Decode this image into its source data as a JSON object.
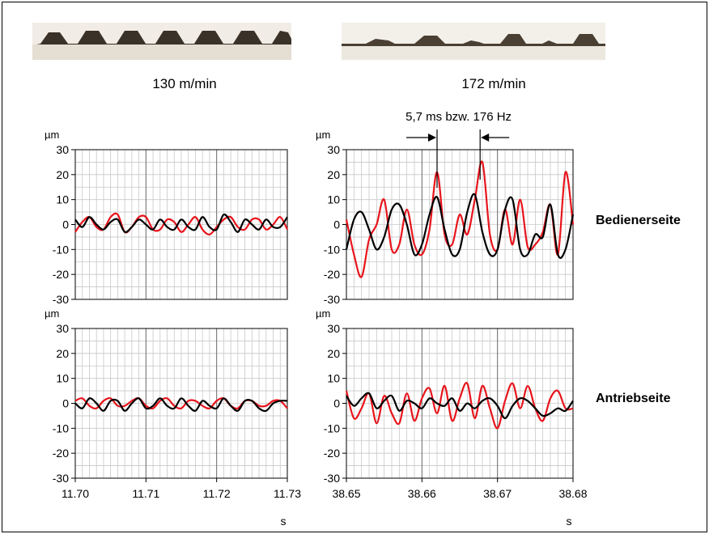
{
  "photos": {
    "left": "flute profile photo 130 m/min (regular, even flutes)",
    "right": "flute profile photo 172 m/min (irregular flutes)"
  },
  "speeds": {
    "left": "130 m/min",
    "right": "172 m/min"
  },
  "annotation": {
    "text": "5,7 ms bzw. 176 Hz"
  },
  "side_labels": {
    "top": "Bedienerseite",
    "bottom": "Antriebseite"
  },
  "colors": {
    "series_red": "#e8141b",
    "series_black": "#000000",
    "grid_minor": "#c8c8c8",
    "grid_major": "#6e6e6e"
  },
  "chart_data": [
    {
      "type": "line",
      "id": "p130_bed",
      "xlabel": "",
      "ylabel": "µm",
      "xlim": [
        11.7,
        11.73
      ],
      "ylim": [
        -30,
        30
      ],
      "yticks": [
        30,
        20,
        10,
        0,
        -10,
        -20,
        -30
      ],
      "series": [
        {
          "color": "red",
          "x": [
            11.7,
            11.701,
            11.702,
            11.703,
            11.704,
            11.705,
            11.706,
            11.707,
            11.708,
            11.709,
            11.71,
            11.711,
            11.712,
            11.713,
            11.714,
            11.715,
            11.716,
            11.717,
            11.718,
            11.719,
            11.72,
            11.721,
            11.722,
            11.723,
            11.724,
            11.725,
            11.726,
            11.727,
            11.728,
            11.729,
            11.73
          ],
          "y": [
            -3,
            1,
            3,
            -1,
            -2,
            3,
            4,
            -3,
            -1,
            3,
            3,
            -2,
            -2,
            2,
            1,
            -3,
            0,
            3,
            -2,
            -4,
            -1,
            2,
            3,
            -1,
            -2,
            2,
            2,
            -2,
            0,
            3,
            -2
          ]
        },
        {
          "color": "black",
          "x": [
            11.7,
            11.701,
            11.702,
            11.703,
            11.704,
            11.705,
            11.706,
            11.707,
            11.708,
            11.709,
            11.71,
            11.711,
            11.712,
            11.713,
            11.714,
            11.715,
            11.716,
            11.717,
            11.718,
            11.719,
            11.72,
            11.721,
            11.722,
            11.723,
            11.724,
            11.725,
            11.726,
            11.727,
            11.728,
            11.729,
            11.73
          ],
          "y": [
            2,
            -1,
            3,
            0,
            -2,
            1,
            2,
            -3,
            -1,
            2,
            0,
            -2,
            2,
            -1,
            -2,
            2,
            -1,
            -2,
            3,
            -1,
            -2,
            4,
            1,
            -3,
            2,
            0,
            -2,
            2,
            -1,
            -1,
            3
          ]
        }
      ]
    },
    {
      "type": "line",
      "id": "p172_bed",
      "xlabel": "",
      "ylabel": "µm",
      "xlim": [
        38.65,
        38.68
      ],
      "ylim": [
        -30,
        30
      ],
      "yticks": [
        30,
        20,
        10,
        0,
        -10,
        -20,
        -30
      ],
      "series": [
        {
          "color": "red",
          "x": [
            38.65,
            38.651,
            38.652,
            38.653,
            38.654,
            38.655,
            38.656,
            38.657,
            38.658,
            38.659,
            38.66,
            38.661,
            38.662,
            38.663,
            38.664,
            38.665,
            38.666,
            38.667,
            38.668,
            38.669,
            38.67,
            38.671,
            38.672,
            38.673,
            38.674,
            38.675,
            38.676,
            38.677,
            38.678,
            38.679,
            38.68
          ],
          "y": [
            2,
            -12,
            -21,
            -6,
            0,
            10,
            -10,
            -8,
            6,
            -8,
            -12,
            -2,
            21,
            -4,
            -8,
            4,
            -4,
            10,
            25,
            -4,
            -10,
            6,
            -8,
            10,
            -9,
            -8,
            -3,
            8,
            -12,
            21,
            0
          ]
        },
        {
          "color": "black",
          "x": [
            38.65,
            38.651,
            38.652,
            38.653,
            38.654,
            38.655,
            38.656,
            38.657,
            38.658,
            38.659,
            38.66,
            38.661,
            38.662,
            38.663,
            38.664,
            38.665,
            38.666,
            38.667,
            38.668,
            38.669,
            38.67,
            38.671,
            38.672,
            38.673,
            38.674,
            38.675,
            38.676,
            38.677,
            38.678,
            38.679,
            38.68
          ],
          "y": [
            -10,
            2,
            5,
            -2,
            -10,
            -5,
            6,
            8,
            0,
            -12,
            -8,
            4,
            11,
            -2,
            -12,
            -10,
            5,
            12,
            -3,
            -12,
            -10,
            6,
            10,
            -10,
            -12,
            -4,
            -5,
            8,
            -12,
            -10,
            4
          ]
        }
      ]
    },
    {
      "type": "line",
      "id": "p130_ant",
      "xlabel": "s",
      "ylabel": "µm",
      "xlim": [
        11.7,
        11.73
      ],
      "ylim": [
        -30,
        30
      ],
      "yticks": [
        30,
        20,
        10,
        0,
        -10,
        -20,
        -30
      ],
      "xticks": [
        "11.70",
        "11.71",
        "11.72",
        "11.73"
      ],
      "series": [
        {
          "color": "red",
          "x": [
            11.7,
            11.701,
            11.702,
            11.703,
            11.704,
            11.705,
            11.706,
            11.707,
            11.708,
            11.709,
            11.71,
            11.711,
            11.712,
            11.713,
            11.714,
            11.715,
            11.716,
            11.717,
            11.718,
            11.719,
            11.72,
            11.721,
            11.722,
            11.723,
            11.724,
            11.725,
            11.726,
            11.727,
            11.728,
            11.729,
            11.73
          ],
          "y": [
            1,
            2,
            -1,
            -2,
            1,
            2,
            -1,
            -1,
            1,
            2,
            -1,
            -2,
            1,
            2,
            -1,
            -2,
            1,
            1,
            -1,
            -2,
            1,
            2,
            -1,
            -2,
            1,
            1,
            -1,
            -1,
            1,
            1,
            -2
          ]
        },
        {
          "color": "black",
          "x": [
            11.7,
            11.701,
            11.702,
            11.703,
            11.704,
            11.705,
            11.706,
            11.707,
            11.708,
            11.709,
            11.71,
            11.711,
            11.712,
            11.713,
            11.714,
            11.715,
            11.716,
            11.717,
            11.718,
            11.719,
            11.72,
            11.721,
            11.722,
            11.723,
            11.724,
            11.725,
            11.726,
            11.727,
            11.728,
            11.729,
            11.73
          ],
          "y": [
            0,
            -2,
            2,
            0,
            -3,
            1,
            1,
            -3,
            0,
            2,
            -2,
            -1,
            2,
            -1,
            -2,
            2,
            -1,
            -3,
            1,
            -1,
            -2,
            2,
            -1,
            -3,
            1,
            1,
            -2,
            -3,
            0,
            1,
            1
          ]
        }
      ]
    },
    {
      "type": "line",
      "id": "p172_ant",
      "xlabel": "s",
      "ylabel": "µm",
      "xlim": [
        38.65,
        38.68
      ],
      "ylim": [
        -30,
        30
      ],
      "yticks": [
        30,
        20,
        10,
        0,
        -10,
        -20,
        -30
      ],
      "xticks": [
        "38.65",
        "38.66",
        "38.67",
        "38.68"
      ],
      "series": [
        {
          "color": "red",
          "x": [
            38.65,
            38.651,
            38.652,
            38.653,
            38.654,
            38.655,
            38.656,
            38.657,
            38.658,
            38.659,
            38.66,
            38.661,
            38.662,
            38.663,
            38.664,
            38.665,
            38.666,
            38.667,
            38.668,
            38.669,
            38.67,
            38.671,
            38.672,
            38.673,
            38.674,
            38.675,
            38.676,
            38.677,
            38.678,
            38.679,
            38.68
          ],
          "y": [
            5,
            -6,
            -2,
            4,
            -8,
            3,
            -4,
            -8,
            4,
            -7,
            2,
            6,
            -4,
            7,
            -7,
            2,
            8,
            -6,
            7,
            -2,
            -10,
            1,
            8,
            -2,
            7,
            -2,
            -7,
            2,
            5,
            -2,
            -2
          ]
        },
        {
          "color": "black",
          "x": [
            38.65,
            38.651,
            38.652,
            38.653,
            38.654,
            38.655,
            38.656,
            38.657,
            38.658,
            38.659,
            38.66,
            38.661,
            38.662,
            38.663,
            38.664,
            38.665,
            38.666,
            38.667,
            38.668,
            38.669,
            38.67,
            38.671,
            38.672,
            38.673,
            38.674,
            38.675,
            38.676,
            38.677,
            38.678,
            38.679,
            38.68
          ],
          "y": [
            3,
            -1,
            2,
            4,
            -2,
            1,
            3,
            -3,
            1,
            0,
            -2,
            2,
            0,
            -1,
            2,
            -3,
            0,
            -2,
            1,
            2,
            -1,
            -6,
            -1,
            2,
            1,
            -2,
            -5,
            -4,
            -2,
            -3,
            1
          ]
        }
      ]
    }
  ]
}
